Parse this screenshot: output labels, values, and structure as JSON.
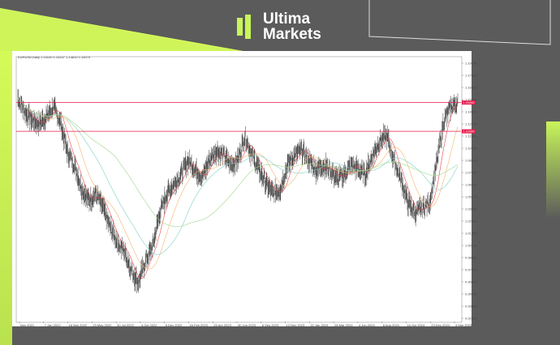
{
  "brand": {
    "name_line1": "Ultima",
    "name_line2": "Markets",
    "accent": "#c8f55a"
  },
  "chart_data": {
    "type": "candlestick",
    "symbol_header": "EURUSD,Daily  1.15100 1.15247 1.14815 1.15070",
    "y_ticks": [
      "1.19100",
      "1.17825",
      "1.16550",
      "1.15280",
      "1.14025",
      "1.12775",
      "1.11500",
      "1.10225",
      "1.08975",
      "1.07700",
      "1.06430",
      "1.05175",
      "1.03900",
      "1.02650",
      "1.01375",
      "1.00125",
      "0.98850",
      "0.97575",
      "0.96325",
      "0.95050",
      "0.93800",
      "0.92525"
    ],
    "ylim": [
      0.92525,
      1.191
    ],
    "x_ticks": [
      "Nov 2021",
      "7 Jan 2022",
      "16 Mar 2022",
      "23 May 2022",
      "30 Jul 2022",
      "4 Oct 2022",
      "8 Dec 2022",
      "16 Feb 2023",
      "25 Apr 2023",
      "30 Jun 2023",
      "6 Sep 2023",
      "13 Nov 2023",
      "22 Jan 2024",
      "28 Mar 2024",
      "4 Jun 2024",
      "8 Aug 2024",
      "16 Oct 2024",
      "23 Dec 2024",
      "3 Mar 2025"
    ],
    "approx_close_path": [
      1.155,
      1.14,
      1.132,
      1.128,
      1.135,
      1.145,
      1.13,
      1.098,
      1.085,
      1.06,
      1.048,
      1.055,
      1.04,
      1.02,
      1.005,
      0.995,
      0.975,
      0.962,
      0.985,
      1.0,
      1.035,
      1.055,
      1.065,
      1.075,
      1.09,
      1.08,
      1.072,
      1.09,
      1.1,
      1.095,
      1.085,
      1.09,
      1.115,
      1.095,
      1.08,
      1.065,
      1.055,
      1.06,
      1.085,
      1.095,
      1.1,
      1.09,
      1.08,
      1.085,
      1.08,
      1.07,
      1.075,
      1.085,
      1.08,
      1.075,
      1.095,
      1.11,
      1.115,
      1.09,
      1.07,
      1.045,
      1.035,
      1.04,
      1.045,
      1.085,
      1.13,
      1.145,
      1.15
    ],
    "horizontal_lines": [
      {
        "value": 1.15,
        "label": "1.15000",
        "color": "#e6194b"
      },
      {
        "value": 1.12,
        "label": "1.12000",
        "color": "#e6194b"
      }
    ],
    "moving_averages": [
      {
        "color": "#e8474c",
        "period": 20
      },
      {
        "color": "#f2b56b",
        "period": 50
      },
      {
        "color": "#7fd0c8",
        "period": 100
      },
      {
        "color": "#9fd78a",
        "period": 200
      }
    ],
    "grid": false
  }
}
